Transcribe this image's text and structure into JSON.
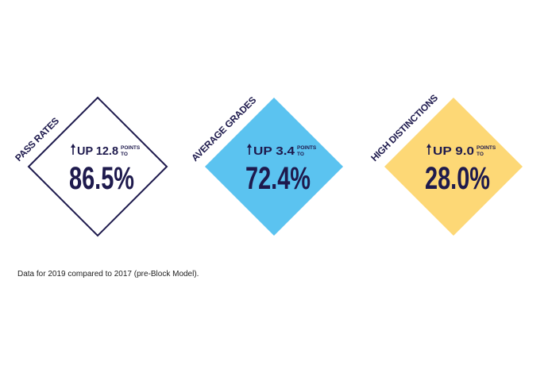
{
  "cards": [
    {
      "label": "PASS RATES",
      "change": "UP 12.8",
      "unit_top": "POINTS",
      "unit_bottom": "TO",
      "value": "86.5%"
    },
    {
      "label": "AVERAGE GRADES",
      "change": "UP 3.4",
      "unit_top": "POINTS",
      "unit_bottom": "TO",
      "value": "72.4%"
    },
    {
      "label": "HIGH DISTINCTIONS",
      "change": "UP 9.0",
      "unit_top": "POINTS",
      "unit_bottom": "TO",
      "value": "28.0%"
    }
  ],
  "footnote": "Data for 2019 compared to 2017 (pre-Block Model)."
}
